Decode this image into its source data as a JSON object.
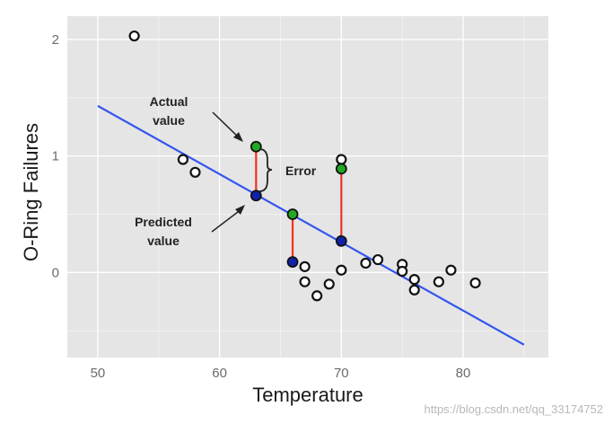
{
  "chart_data": {
    "type": "scatter",
    "xlabel": "Temperature",
    "ylabel": "O-Ring Failures",
    "xlim": [
      47.5,
      87
    ],
    "ylim": [
      -0.73,
      2.2
    ],
    "x_ticks": [
      50,
      60,
      70,
      80
    ],
    "y_ticks": [
      0,
      1,
      2
    ],
    "grid": true,
    "background_color": "#e5e5e5",
    "grid_color": "#ffffff",
    "points": [
      {
        "x": 53,
        "y": 2.03
      },
      {
        "x": 57,
        "y": 0.97
      },
      {
        "x": 58,
        "y": 0.86
      },
      {
        "x": 67,
        "y": 0.05
      },
      {
        "x": 67,
        "y": -0.08
      },
      {
        "x": 68,
        "y": -0.2
      },
      {
        "x": 69,
        "y": -0.1
      },
      {
        "x": 70,
        "y": 0.97
      },
      {
        "x": 70,
        "y": 0.02
      },
      {
        "x": 72,
        "y": 0.08
      },
      {
        "x": 73,
        "y": 0.11
      },
      {
        "x": 75,
        "y": 0.07
      },
      {
        "x": 75,
        "y": 0.01
      },
      {
        "x": 76,
        "y": -0.06
      },
      {
        "x": 76,
        "y": -0.15
      },
      {
        "x": 78,
        "y": -0.08
      },
      {
        "x": 79,
        "y": 0.02
      },
      {
        "x": 81,
        "y": -0.09
      }
    ],
    "actual_points": [
      {
        "x": 63,
        "y": 1.08
      },
      {
        "x": 66,
        "y": 0.5
      },
      {
        "x": 70,
        "y": 0.89
      }
    ],
    "predicted_points": [
      {
        "x": 63,
        "y": 0.66
      },
      {
        "x": 66,
        "y": 0.09
      },
      {
        "x": 70,
        "y": 0.27
      }
    ],
    "regression_line": {
      "x": [
        50,
        85
      ],
      "y": [
        1.43,
        -0.62
      ],
      "color": "#3355ee"
    },
    "error_segment_color": "#ee3322",
    "actual_color": "#22aa22",
    "predicted_color": "#1122aa",
    "annotations": {
      "actual_line1": "Actual",
      "actual_line2": "value",
      "predicted_line1": "Predicted",
      "predicted_line2": "value",
      "error": "Error"
    }
  },
  "watermark": "https://blog.csdn.net/qq_33174752"
}
